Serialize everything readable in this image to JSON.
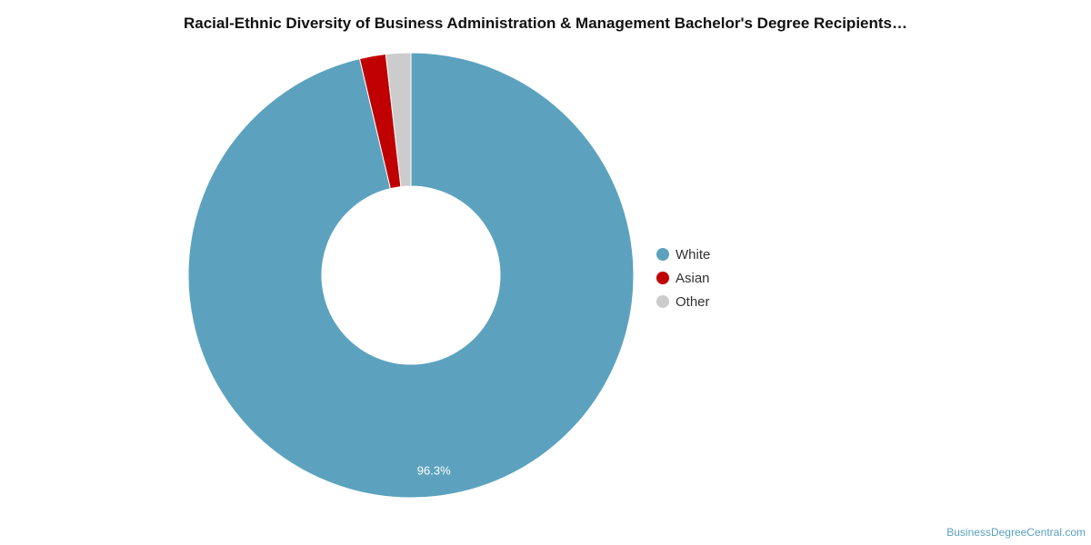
{
  "chart_data": {
    "type": "pie",
    "variant": "donut",
    "title": "Racial-Ethnic Diversity of Business Administration & Management Bachelor's Degree Recipients…",
    "slices": [
      {
        "label": "White",
        "value": 96.3,
        "color": "#5ca2bf",
        "data_label": "96.3%"
      },
      {
        "label": "Asian",
        "value": 1.9,
        "color": "#c00000",
        "data_label": ""
      },
      {
        "label": "Other",
        "value": 1.8,
        "color": "#cccccc",
        "data_label": ""
      }
    ],
    "legend_position": "right"
  },
  "credit": {
    "text": "BusinessDegreeCentral.com"
  }
}
